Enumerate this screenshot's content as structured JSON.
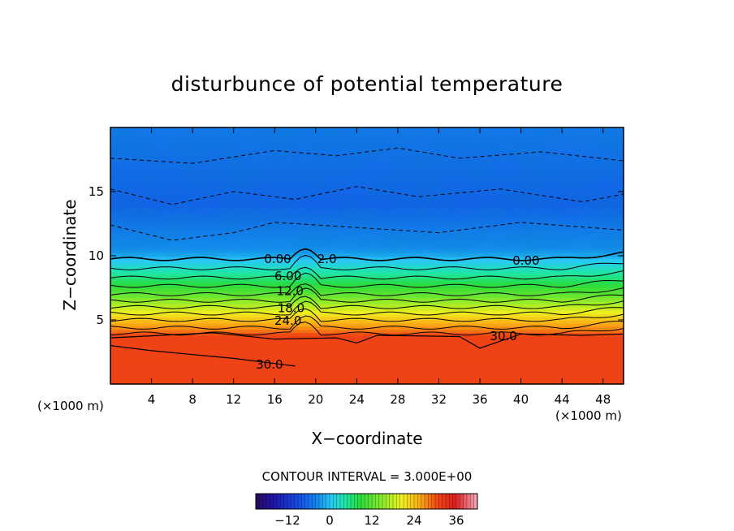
{
  "chart_data": {
    "type": "heatmap",
    "title": "disturbunce of potential temperature",
    "xlabel": "X−coordinate",
    "ylabel": "Z−coordinate",
    "x_unit": "(×1000 m)",
    "x_unit_right": "(×1000 m)",
    "xlim": [
      0,
      50
    ],
    "ylim": [
      0,
      20
    ],
    "x_ticks": [
      4,
      8,
      12,
      16,
      20,
      24,
      28,
      32,
      36,
      40,
      44,
      48
    ],
    "y_ticks": [
      5,
      10,
      15
    ],
    "contour_interval_text": "CONTOUR INTERVAL = 3.000E+00",
    "colorbar": {
      "min": -21,
      "max": 42,
      "ticks": [
        "−12",
        "0",
        "12",
        "24",
        "36"
      ],
      "tick_values": [
        -12,
        0,
        12,
        24,
        36
      ]
    },
    "contour_labels": [
      {
        "text": "0.00",
        "x": 16.3,
        "y": 9.7
      },
      {
        "text": "2.0",
        "x": 21.1,
        "y": 9.7
      },
      {
        "text": "0.00",
        "x": 40.5,
        "y": 9.6
      },
      {
        "text": "6.00",
        "x": 17.3,
        "y": 8.4
      },
      {
        "text": "12.0",
        "x": 17.5,
        "y": 7.2
      },
      {
        "text": "18.0",
        "x": 17.6,
        "y": 5.9
      },
      {
        "text": "24.0",
        "x": 17.3,
        "y": 4.9
      },
      {
        "text": "30.0",
        "x": 38.3,
        "y": 3.7
      },
      {
        "text": "30.0",
        "x": 15.5,
        "y": 1.5
      }
    ],
    "vertical_profile": [
      {
        "z": 0,
        "value": 31
      },
      {
        "z": 3.8,
        "value": 31
      },
      {
        "z": 4.2,
        "value": 28
      },
      {
        "z": 5.0,
        "value": 24
      },
      {
        "z": 6.0,
        "value": 18
      },
      {
        "z": 7.0,
        "value": 12
      },
      {
        "z": 8.3,
        "value": 6
      },
      {
        "z": 9.5,
        "value": 1
      },
      {
        "z": 10.5,
        "value": -3
      },
      {
        "z": 14.0,
        "value": -7
      },
      {
        "z": 17.0,
        "value": -6
      },
      {
        "z": 20.0,
        "value": -5
      }
    ],
    "grid": false,
    "legend": "colorbar-bottom"
  }
}
